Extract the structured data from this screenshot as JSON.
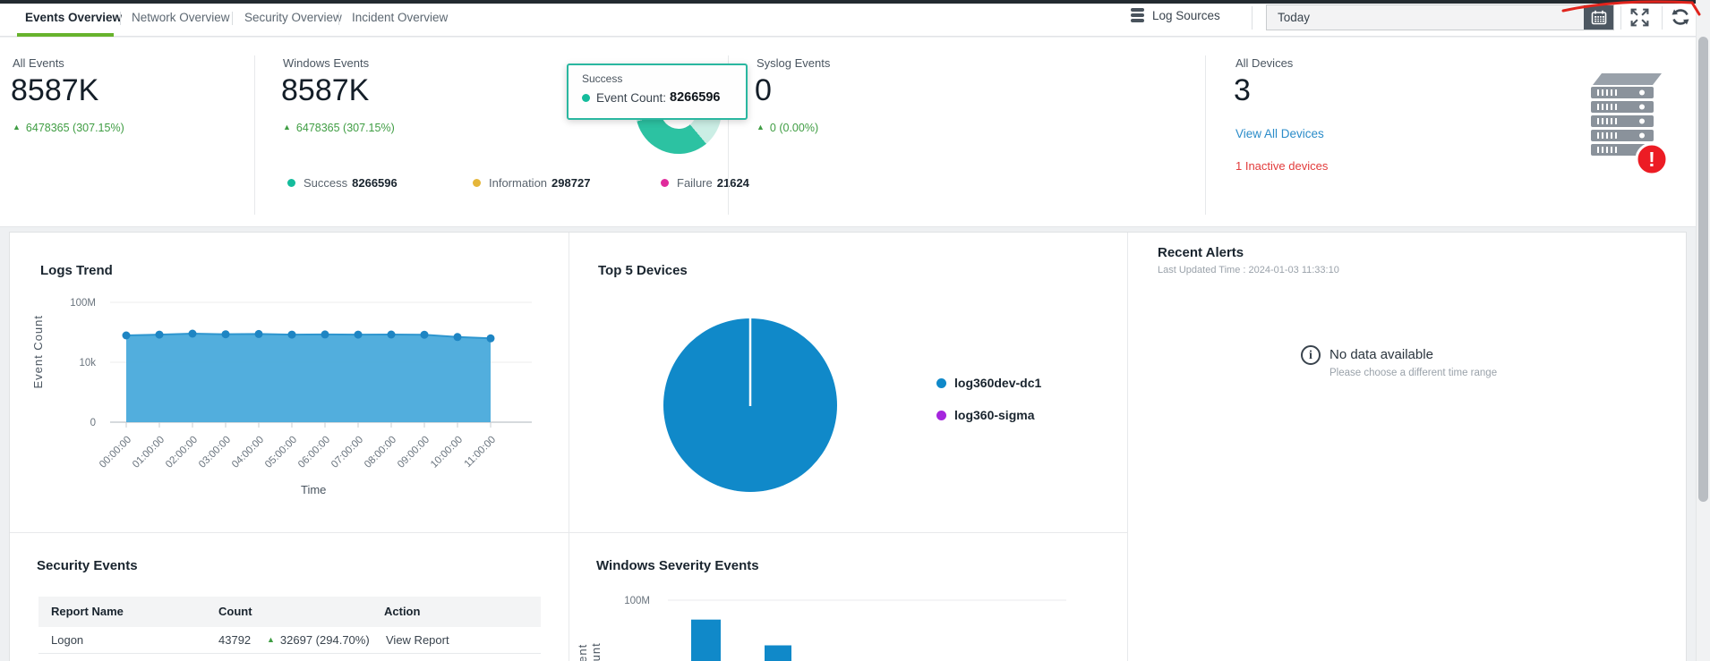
{
  "topbar": {
    "tabs": [
      {
        "label": "Events Overview",
        "active": true
      },
      {
        "label": "Network Overview",
        "active": false
      },
      {
        "label": "Security Overview",
        "active": false
      },
      {
        "label": "Incident Overview",
        "active": false
      }
    ],
    "log_sources_label": "Log Sources",
    "time_range_value": "Today"
  },
  "stats": {
    "all_events": {
      "label": "All Events",
      "value": "8587K",
      "delta": "6478365 (307.15%)"
    },
    "windows_events": {
      "label": "Windows Events",
      "value": "8587K",
      "delta": "6478365 (307.15%)",
      "tooltip": {
        "title": "Success",
        "metric_label": "Event Count:",
        "metric_value": "8266596"
      },
      "legend": [
        {
          "label": "Success",
          "value": "8266596",
          "color": "#14bc9c"
        },
        {
          "label": "Information",
          "value": "298727",
          "color": "#e5b63a"
        },
        {
          "label": "Failure",
          "value": "21624",
          "color": "#e02b9c"
        }
      ]
    },
    "syslog_events": {
      "label": "Syslog Events",
      "value": "0",
      "delta": "0 (0.00%)"
    },
    "all_devices": {
      "label": "All Devices",
      "value": "3",
      "link_label": "View All Devices",
      "warning": "1 Inactive devices"
    }
  },
  "recent_alerts": {
    "title": "Recent Alerts",
    "last_updated": "Last Updated Time : 2024-01-03 11:33:10",
    "empty_title": "No data available",
    "empty_hint": "Please choose a different time range"
  },
  "security_events": {
    "title": "Security Events",
    "columns": [
      "Report Name",
      "Count",
      "Action"
    ],
    "rows": [
      {
        "report": "Logon",
        "count": "43792",
        "delta": "32697 (294.70%)",
        "action": "View Report"
      }
    ]
  },
  "chart_data": [
    {
      "type": "area",
      "title": "Logs Trend",
      "xlabel": "Time",
      "ylabel": "Event Count",
      "x": [
        "00:00:00",
        "01:00:00",
        "02:00:00",
        "03:00:00",
        "04:00:00",
        "05:00:00",
        "06:00:00",
        "07:00:00",
        "08:00:00",
        "09:00:00",
        "10:00:00",
        "11:00:00"
      ],
      "values": [
        620000,
        700000,
        810000,
        740000,
        770000,
        700000,
        720000,
        700000,
        710000,
        690000,
        480000,
        390000
      ],
      "yticks": [
        {
          "label": "0",
          "value": 0
        },
        {
          "label": "10k",
          "value": 10000
        },
        {
          "label": "100M",
          "value": 100000000
        }
      ],
      "yscale": "log",
      "grid": true,
      "color_fill": "#45a8da",
      "color_line": "#2e96cf",
      "color_point": "#1e85c3"
    },
    {
      "type": "pie",
      "title": "Top 5 Devices",
      "legend_position": "right",
      "slices": [
        {
          "label": "log360dev-dc1",
          "value": 8566000,
          "color": "#1089c9"
        },
        {
          "label": "log360-sigma",
          "value": 21000,
          "color": "#a526dd"
        }
      ]
    },
    {
      "type": "bar",
      "title": "Windows Severity Events",
      "ylabel": "Event Count",
      "categories": [
        "",
        ""
      ],
      "values": [
        8266596,
        298727
      ],
      "yticks": [
        {
          "label": "100M",
          "value": 100000000
        }
      ],
      "yscale": "log",
      "color": "#1089c9",
      "clipped_bottom": true
    }
  ]
}
